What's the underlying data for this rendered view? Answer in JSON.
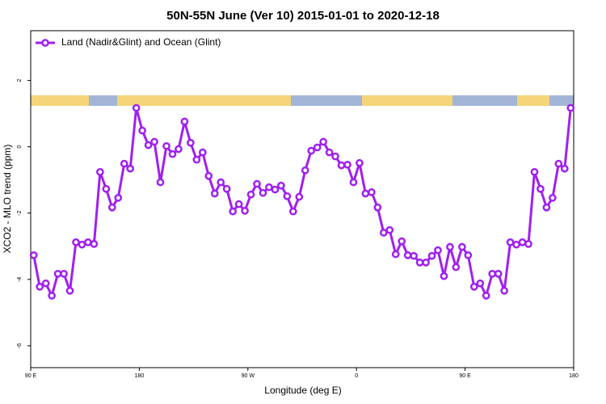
{
  "chart_data": {
    "type": "line",
    "title": "50N-55N June (Ver 10)   2015-01-01 to 2020-12-18",
    "xlabel": "Longitude (deg E)",
    "ylabel": "XCO2 - MLO trend (ppm)",
    "legend_position": "top-left",
    "xlim": [
      90,
      540
    ],
    "ylim": [
      -6.66,
      3.5
    ],
    "xticks": [
      {
        "value": 90,
        "label": "90 E"
      },
      {
        "value": 180,
        "label": "180"
      },
      {
        "value": 270,
        "label": "90 W"
      },
      {
        "value": 360,
        "label": "0"
      },
      {
        "value": 450,
        "label": "90 E"
      },
      {
        "value": 540,
        "label": "180"
      }
    ],
    "yticks": [
      -6,
      -4,
      -2,
      0,
      2
    ],
    "x": [
      92.5,
      97.5,
      102.5,
      107.5,
      112.5,
      117.5,
      122.5,
      127.5,
      132.5,
      137.5,
      142.5,
      147.5,
      152.5,
      157.5,
      162.5,
      167.5,
      172.5,
      177.5,
      182.5,
      187.5,
      192.5,
      197.5,
      202.5,
      207.5,
      212.5,
      217.5,
      222.5,
      227.5,
      232.5,
      237.5,
      242.5,
      247.5,
      252.5,
      257.5,
      262.5,
      267.5,
      272.5,
      277.5,
      282.5,
      287.5,
      292.5,
      297.5,
      302.5,
      307.5,
      312.5,
      317.5,
      322.5,
      327.5,
      332.5,
      337.5,
      342.5,
      347.5,
      352.5,
      357.5,
      362.5,
      367.5,
      372.5,
      377.5,
      382.5,
      387.5,
      392.5,
      397.5,
      402.5,
      407.5,
      412.5,
      417.5,
      422.5,
      427.5,
      432.5,
      437.5,
      442.5,
      447.5,
      452.5,
      457.5,
      462.5,
      467.5,
      472.5,
      477.5,
      482.5,
      487.5,
      492.5,
      497.5,
      502.5,
      507.5,
      512.5,
      517.5,
      522.5,
      527.5,
      532.5,
      537.5
    ],
    "series": [
      {
        "name": "Land (Nadir&Glint) and Ocean (Glint)",
        "color": "#a020f0",
        "values": [
          -3.27,
          -4.22,
          -4.12,
          -4.49,
          -3.83,
          -3.83,
          -4.34,
          -2.88,
          -2.95,
          -2.88,
          -2.93,
          -0.76,
          -1.27,
          -1.83,
          -1.54,
          -0.51,
          -0.66,
          1.17,
          0.49,
          0.05,
          0.15,
          -1.07,
          0.02,
          -0.22,
          -0.07,
          0.76,
          0.12,
          -0.39,
          -0.17,
          -0.88,
          -1.41,
          -1.07,
          -1.27,
          -1.95,
          -1.73,
          -1.93,
          -1.44,
          -1.12,
          -1.39,
          -1.22,
          -1.29,
          -1.17,
          -1.49,
          -1.95,
          -1.51,
          -0.71,
          -0.12,
          -0.02,
          0.15,
          -0.17,
          -0.29,
          -0.56,
          -0.54,
          -1.07,
          -0.49,
          -1.41,
          -1.37,
          -1.83,
          -2.59,
          -2.51,
          -3.24,
          -2.85,
          -3.27,
          -3.29,
          -3.49,
          -3.49,
          -3.29,
          -3.12,
          -3.9,
          -3.02,
          -3.63,
          -3.02,
          -3.27,
          -4.22,
          -4.12,
          -4.49,
          -3.83,
          -3.83,
          -4.34,
          -2.88,
          -2.95,
          -2.88,
          -2.93,
          -0.76,
          -1.27,
          -1.83,
          -1.54,
          -0.51,
          -0.66,
          1.17
        ]
      }
    ]
  }
}
